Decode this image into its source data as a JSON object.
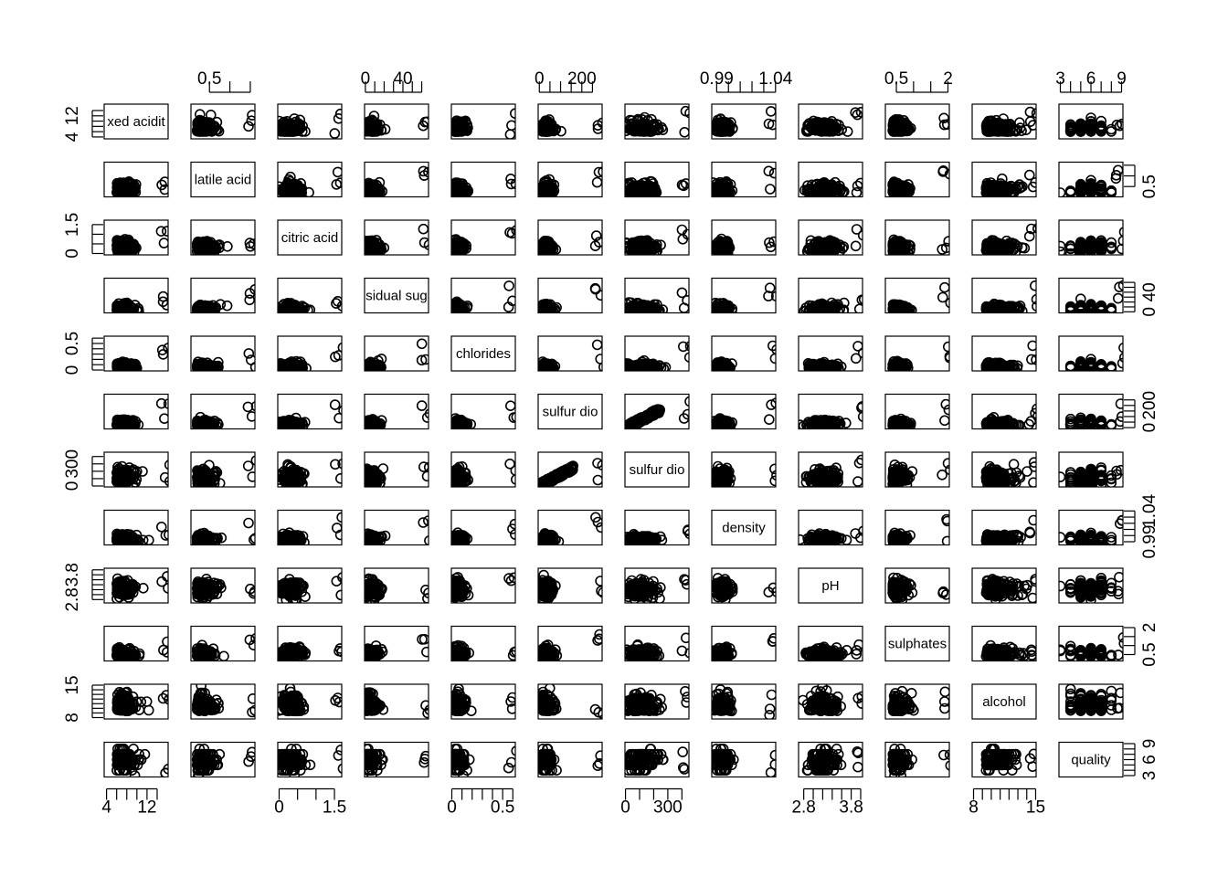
{
  "chart_data": {
    "type": "scatter",
    "kind": "scatterplot-matrix",
    "variables": [
      "fixed acidity",
      "volatile acidity",
      "citric acid",
      "residual sugar",
      "chlorides",
      "free sulfur dioxide",
      "total sulfur dioxide",
      "density",
      "pH",
      "sulphates",
      "alcohol",
      "quality"
    ],
    "diagonal_labels": [
      "xed acidit",
      "latile acid",
      "citric acid",
      "sidual sug",
      "chlorides",
      "sulfur dio",
      "sulfur dio",
      "density",
      "pH",
      "sulphates",
      "alcohol",
      "quality"
    ],
    "ranges": [
      [
        3.8,
        15.9
      ],
      [
        0.08,
        1.58
      ],
      [
        0.0,
        1.66
      ],
      [
        0.6,
        65.8
      ],
      [
        0.009,
        0.611
      ],
      [
        1,
        289
      ],
      [
        6,
        440
      ],
      [
        0.987,
        1.039
      ],
      [
        2.72,
        4.01
      ],
      [
        0.22,
        2.0
      ],
      [
        8.0,
        14.9
      ],
      [
        3,
        9
      ]
    ],
    "ticks": [
      {
        "labels": [
          4,
          12
        ],
        "minor": [
          4,
          6,
          8,
          10,
          12,
          14
        ]
      },
      {
        "labels": [
          0.5
        ],
        "minor": [
          0.5,
          1.0,
          1.5
        ]
      },
      {
        "labels": [
          0.0,
          1.5
        ],
        "minor": [
          0.0,
          0.5,
          1.0,
          1.5
        ]
      },
      {
        "labels": [
          0,
          40
        ],
        "minor": [
          0,
          10,
          20,
          30,
          40,
          50,
          60
        ]
      },
      {
        "labels": [
          0.0,
          0.5
        ],
        "minor": [
          0.0,
          0.1,
          0.2,
          0.3,
          0.4,
          0.5,
          0.6
        ]
      },
      {
        "labels": [
          0,
          200
        ],
        "minor": [
          0,
          50,
          100,
          150,
          200,
          250
        ]
      },
      {
        "labels": [
          0,
          300
        ],
        "minor": [
          0,
          100,
          200,
          300,
          400
        ]
      },
      {
        "labels": [
          0.99,
          1.04
        ],
        "minor": [
          0.99,
          1.0,
          1.01,
          1.02,
          1.03,
          1.04
        ]
      },
      {
        "labels": [
          2.8,
          3.8
        ],
        "minor": [
          2.8,
          3.0,
          3.2,
          3.4,
          3.6,
          3.8,
          4.0
        ]
      },
      {
        "labels": [
          0.5,
          2.0
        ],
        "minor": [
          0.5,
          1.0,
          1.5,
          2.0
        ]
      },
      {
        "labels": [
          8,
          15
        ],
        "minor": [
          8,
          9,
          10,
          11,
          12,
          13,
          14,
          15
        ]
      },
      {
        "labels": [
          3,
          6,
          9
        ],
        "minor": [
          3,
          4,
          5,
          6,
          7,
          8,
          9
        ]
      }
    ],
    "point_marker": "open circle",
    "n_points": 6497,
    "point_color": "#000000",
    "axis_layout": "alternating (R pairs)"
  }
}
